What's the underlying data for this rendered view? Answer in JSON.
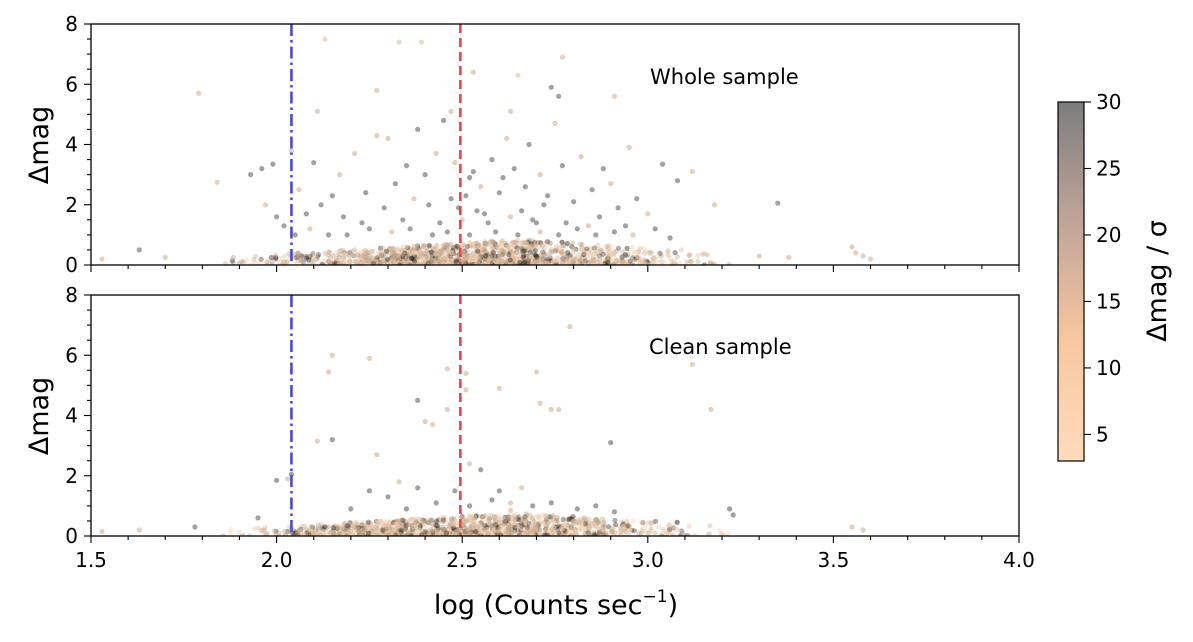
{
  "chart_data": {
    "type": "scatter",
    "panels": [
      {
        "id": "top",
        "annotation": "Whole sample",
        "ylabel": "Δmag",
        "xlim": [
          1.5,
          4.0
        ],
        "ylim": [
          0,
          8
        ],
        "yticks": [
          "0",
          "2",
          "4",
          "6",
          "8"
        ],
        "vlines": [
          {
            "x": 2.04,
            "style": "dashdot",
            "color": "#4a4ad6"
          },
          {
            "x": 2.495,
            "style": "dashed",
            "color": "#e04848"
          }
        ],
        "points": [
          [
            1.79,
            5.7,
            8
          ],
          [
            2.13,
            7.5,
            6
          ],
          [
            2.33,
            7.4,
            6
          ],
          [
            2.39,
            7.4,
            6
          ],
          [
            2.77,
            6.9,
            8
          ],
          [
            2.65,
            6.3,
            6
          ],
          [
            2.53,
            6.4,
            8
          ],
          [
            2.91,
            5.6,
            8
          ],
          [
            2.74,
            5.9,
            26
          ],
          [
            2.76,
            5.6,
            26
          ],
          [
            2.11,
            5.1,
            8
          ],
          [
            2.27,
            5.8,
            8
          ],
          [
            2.47,
            5.1,
            8
          ],
          [
            2.63,
            5.1,
            8
          ],
          [
            3.04,
            3.35,
            26
          ],
          [
            3.35,
            2.05,
            26
          ],
          [
            3.18,
            2.0,
            8
          ],
          [
            3.12,
            3.1,
            8
          ],
          [
            1.84,
            2.75,
            8
          ],
          [
            1.93,
            3.0,
            26
          ],
          [
            1.96,
            3.2,
            26
          ],
          [
            1.99,
            3.35,
            26
          ],
          [
            2.04,
            3.8,
            8
          ],
          [
            2.1,
            3.4,
            26
          ],
          [
            2.08,
            1.7,
            26
          ],
          [
            2.15,
            2.3,
            26
          ],
          [
            2.18,
            1.6,
            26
          ],
          [
            2.21,
            3.7,
            8
          ],
          [
            2.23,
            1.4,
            26
          ],
          [
            2.27,
            4.3,
            8
          ],
          [
            2.3,
            4.2,
            8
          ],
          [
            2.32,
            2.7,
            26
          ],
          [
            2.35,
            3.3,
            26
          ],
          [
            2.38,
            4.5,
            26
          ],
          [
            2.41,
            2.0,
            26
          ],
          [
            2.43,
            3.7,
            8
          ],
          [
            2.45,
            4.8,
            26
          ],
          [
            2.47,
            2.2,
            26
          ],
          [
            2.49,
            1.9,
            26
          ],
          [
            2.5,
            1.5,
            8
          ],
          [
            2.52,
            2.9,
            26
          ],
          [
            2.53,
            3.1,
            26
          ],
          [
            2.55,
            2.6,
            8
          ],
          [
            2.56,
            1.7,
            26
          ],
          [
            2.58,
            3.5,
            26
          ],
          [
            2.6,
            2.4,
            26
          ],
          [
            2.62,
            4.2,
            8
          ],
          [
            2.64,
            3.2,
            26
          ],
          [
            2.66,
            1.8,
            26
          ],
          [
            2.68,
            4.0,
            26
          ],
          [
            2.7,
            1.4,
            26
          ],
          [
            2.71,
            3.0,
            8
          ],
          [
            2.73,
            2.3,
            26
          ],
          [
            2.75,
            4.7,
            8
          ],
          [
            2.77,
            3.3,
            26
          ],
          [
            2.8,
            2.1,
            26
          ],
          [
            2.82,
            3.6,
            8
          ],
          [
            2.85,
            2.5,
            26
          ],
          [
            2.88,
            3.2,
            26
          ],
          [
            2.9,
            2.7,
            8
          ],
          [
            2.92,
            1.9,
            26
          ],
          [
            2.95,
            3.9,
            8
          ],
          [
            2.97,
            2.2,
            26
          ],
          [
            3.0,
            1.7,
            8
          ],
          [
            3.08,
            2.8,
            26
          ],
          [
            2.02,
            1.3,
            26
          ],
          [
            2.06,
            2.5,
            8
          ],
          [
            2.12,
            2.0,
            26
          ],
          [
            2.17,
            3.0,
            8
          ],
          [
            2.24,
            2.4,
            26
          ],
          [
            2.29,
            1.9,
            26
          ],
          [
            2.34,
            1.5,
            26
          ],
          [
            2.37,
            2.2,
            8
          ],
          [
            2.4,
            3.0,
            26
          ],
          [
            2.44,
            1.4,
            26
          ],
          [
            2.48,
            3.4,
            8
          ],
          [
            2.51,
            2.3,
            26
          ],
          [
            2.54,
            1.8,
            26
          ],
          [
            2.57,
            1.4,
            26
          ],
          [
            2.61,
            2.9,
            26
          ],
          [
            2.63,
            1.6,
            8
          ],
          [
            2.67,
            2.6,
            26
          ],
          [
            2.69,
            1.5,
            26
          ],
          [
            2.72,
            2.0,
            26
          ],
          [
            2.78,
            1.4,
            26
          ],
          [
            2.84,
            1.3,
            8
          ],
          [
            2.87,
            1.6,
            26
          ],
          [
            2.94,
            1.3,
            26
          ],
          [
            1.97,
            2.0,
            8
          ],
          [
            2.0,
            1.6,
            26
          ],
          [
            2.05,
            1.0,
            26
          ],
          [
            2.09,
            1.2,
            8
          ],
          [
            2.14,
            1.0,
            26
          ],
          [
            2.19,
            1.0,
            26
          ],
          [
            2.25,
            1.2,
            26
          ],
          [
            2.31,
            1.1,
            8
          ],
          [
            2.36,
            1.2,
            26
          ],
          [
            2.42,
            1.0,
            26
          ],
          [
            2.46,
            1.1,
            26
          ],
          [
            2.52,
            1.0,
            26
          ],
          [
            2.59,
            1.1,
            26
          ],
          [
            2.65,
            1.0,
            26
          ],
          [
            2.71,
            1.1,
            8
          ],
          [
            2.76,
            1.0,
            26
          ],
          [
            2.81,
            1.2,
            26
          ],
          [
            2.86,
            1.0,
            26
          ],
          [
            2.91,
            1.1,
            26
          ],
          [
            2.96,
            1.0,
            8
          ],
          [
            3.02,
            1.2,
            26
          ],
          [
            3.06,
            0.9,
            26
          ],
          [
            3.55,
            0.6,
            8
          ],
          [
            3.56,
            0.4,
            8
          ],
          [
            3.58,
            0.3,
            8
          ],
          [
            1.63,
            0.5,
            26
          ],
          [
            1.53,
            0.2,
            8
          ],
          [
            3.6,
            0.2,
            8
          ],
          [
            3.38,
            0.25,
            8
          ],
          [
            3.3,
            0.3,
            8
          ],
          [
            1.7,
            0.25,
            8
          ]
        ]
      },
      {
        "id": "bottom",
        "annotation": "Clean sample",
        "ylabel": "Δmag",
        "xlim": [
          1.5,
          4.0
        ],
        "ylim": [
          0,
          8
        ],
        "yticks": [
          "0",
          "2",
          "4",
          "6",
          "8"
        ],
        "vlines": [
          {
            "x": 2.04,
            "style": "dashdot",
            "color": "#4a4ad6"
          },
          {
            "x": 2.495,
            "style": "dashed",
            "color": "#e04848"
          }
        ],
        "points": [
          [
            2.79,
            6.95,
            8
          ],
          [
            2.15,
            6.0,
            8
          ],
          [
            2.25,
            5.9,
            8
          ],
          [
            2.46,
            5.55,
            8
          ],
          [
            2.14,
            5.45,
            8
          ],
          [
            3.12,
            5.7,
            8
          ],
          [
            2.51,
            5.4,
            8
          ],
          [
            2.6,
            4.9,
            8
          ],
          [
            2.7,
            5.45,
            8
          ],
          [
            2.51,
            4.85,
            8
          ],
          [
            2.74,
            4.2,
            8
          ],
          [
            2.76,
            4.2,
            8
          ],
          [
            2.38,
            4.5,
            26
          ],
          [
            2.4,
            3.8,
            8
          ],
          [
            3.17,
            4.2,
            8
          ],
          [
            2.42,
            3.7,
            8
          ],
          [
            2.46,
            4.2,
            8
          ],
          [
            2.71,
            4.4,
            8
          ],
          [
            2.9,
            3.1,
            26
          ],
          [
            2.11,
            3.15,
            8
          ],
          [
            2.15,
            3.2,
            26
          ],
          [
            2.27,
            2.7,
            8
          ],
          [
            2.0,
            1.85,
            26
          ],
          [
            2.03,
            1.9,
            8
          ],
          [
            2.04,
            2.05,
            26
          ],
          [
            2.52,
            2.4,
            8
          ],
          [
            2.55,
            2.2,
            26
          ],
          [
            2.33,
            1.8,
            8
          ],
          [
            2.38,
            1.6,
            26
          ],
          [
            2.6,
            1.5,
            26
          ],
          [
            2.66,
            1.6,
            8
          ],
          [
            2.48,
            1.5,
            26
          ],
          [
            2.25,
            1.5,
            26
          ],
          [
            2.3,
            1.3,
            26
          ],
          [
            2.43,
            1.1,
            26
          ],
          [
            2.58,
            1.2,
            26
          ],
          [
            2.63,
            1.1,
            8
          ],
          [
            2.69,
            1.0,
            26
          ],
          [
            2.74,
            1.1,
            26
          ],
          [
            2.81,
            0.9,
            26
          ],
          [
            2.86,
            1.0,
            26
          ],
          [
            2.91,
            0.8,
            26
          ],
          [
            3.22,
            0.9,
            26
          ],
          [
            3.23,
            0.7,
            26
          ],
          [
            2.2,
            0.9,
            26
          ],
          [
            2.35,
            0.9,
            26
          ],
          [
            2.52,
            1.0,
            26
          ],
          [
            2.63,
            0.85,
            8
          ],
          [
            1.95,
            0.6,
            26
          ],
          [
            3.55,
            0.3,
            8
          ],
          [
            3.58,
            0.2,
            8
          ],
          [
            1.53,
            0.15,
            8
          ],
          [
            1.63,
            0.2,
            8
          ],
          [
            1.78,
            0.3,
            26
          ]
        ]
      }
    ],
    "bands": [
      {
        "panel": "top",
        "x0": 1.76,
        "x1": 3.3,
        "y_top_center": 2.65,
        "top_max": 0.85,
        "count": 1300,
        "dark_ratio": 0.22
      },
      {
        "panel": "bottom",
        "x0": 1.76,
        "x1": 3.3,
        "y_top_center": 2.65,
        "top_max": 0.75,
        "count": 1200,
        "dark_ratio": 0.2
      }
    ],
    "xlabel": "log (Counts sec",
    "xlabel_exp": "−1",
    "xlabel_close": ")",
    "xticks": [
      "1.5",
      "2.0",
      "2.5",
      "3.0",
      "3.5",
      "4.0"
    ],
    "colorbar": {
      "label": "Δmag / σ",
      "range": [
        3,
        30
      ],
      "ticks": [
        "5",
        "10",
        "15",
        "20",
        "25",
        "30"
      ],
      "color_low": "#ffd9b5",
      "color_high": "#000000"
    }
  }
}
